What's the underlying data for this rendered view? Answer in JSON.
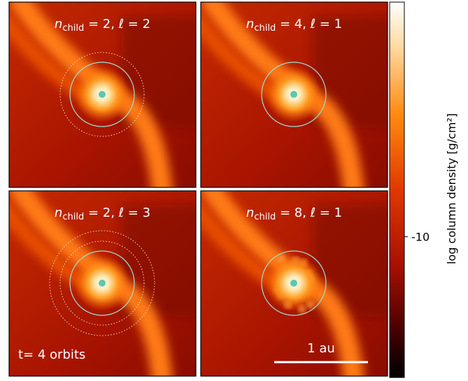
{
  "panels": [
    {
      "title": {
        "var": "n",
        "sub": "child",
        "rest": " = 2, ℓ = 2"
      }
    },
    {
      "title": {
        "var": "n",
        "sub": "child",
        "rest": " = 4, ℓ = 1"
      }
    },
    {
      "title": {
        "var": "n",
        "sub": "child",
        "rest": " = 2, ℓ = 3"
      },
      "annotation": "t= 4 orbits"
    },
    {
      "title": {
        "var": "n",
        "sub": "child",
        "rest": " = 8, ℓ = 1"
      },
      "scale_bar": "1 au"
    }
  ],
  "colorbar": {
    "label": "log column density [g/cm²]",
    "lim": [
      -11.5,
      -7.5
    ],
    "ticks": [
      -10
    ]
  }
}
